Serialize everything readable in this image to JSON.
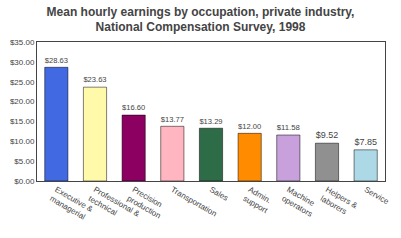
{
  "chart_data": {
    "type": "bar",
    "title": "Mean hourly earnings by occupation, private industry,\nNational Compensation Survey, 1998",
    "categories": [
      "Executive &\nmanagerial",
      "Professional &\ntechnical",
      "Precision\nproduction",
      "Transportation",
      "Sales",
      "Admin.\nsupport",
      "Machine\noperators",
      "Helpers &\nlaborers",
      "Service"
    ],
    "values": [
      28.63,
      23.63,
      16.6,
      13.77,
      13.29,
      12.0,
      11.58,
      9.52,
      7.85
    ],
    "value_labels": [
      "$28.63",
      "$23.63",
      "$16.60",
      "$13.77",
      "$13.29",
      "$12.00",
      "$11.58",
      "$9.52",
      "$7.85"
    ],
    "data_labels": true,
    "colors": [
      "#4169E1",
      "#FFFAAA",
      "#8B0060",
      "#FFB6C1",
      "#2E6B47",
      "#FF8C00",
      "#C8A0DC",
      "#909090",
      "#ADD8E6"
    ],
    "ylim": [
      0,
      35
    ],
    "yticks": [
      {
        "value": 0,
        "label": "$0.00"
      },
      {
        "value": 5,
        "label": "$5.00"
      },
      {
        "value": 10,
        "label": "$10.00"
      },
      {
        "value": 15,
        "label": "$15.00"
      },
      {
        "value": 20,
        "label": "$20.00"
      },
      {
        "value": 25,
        "label": "$25.00"
      },
      {
        "value": 30,
        "label": "$30.00"
      },
      {
        "value": 35,
        "label": "$35.00"
      }
    ],
    "grid": false
  }
}
